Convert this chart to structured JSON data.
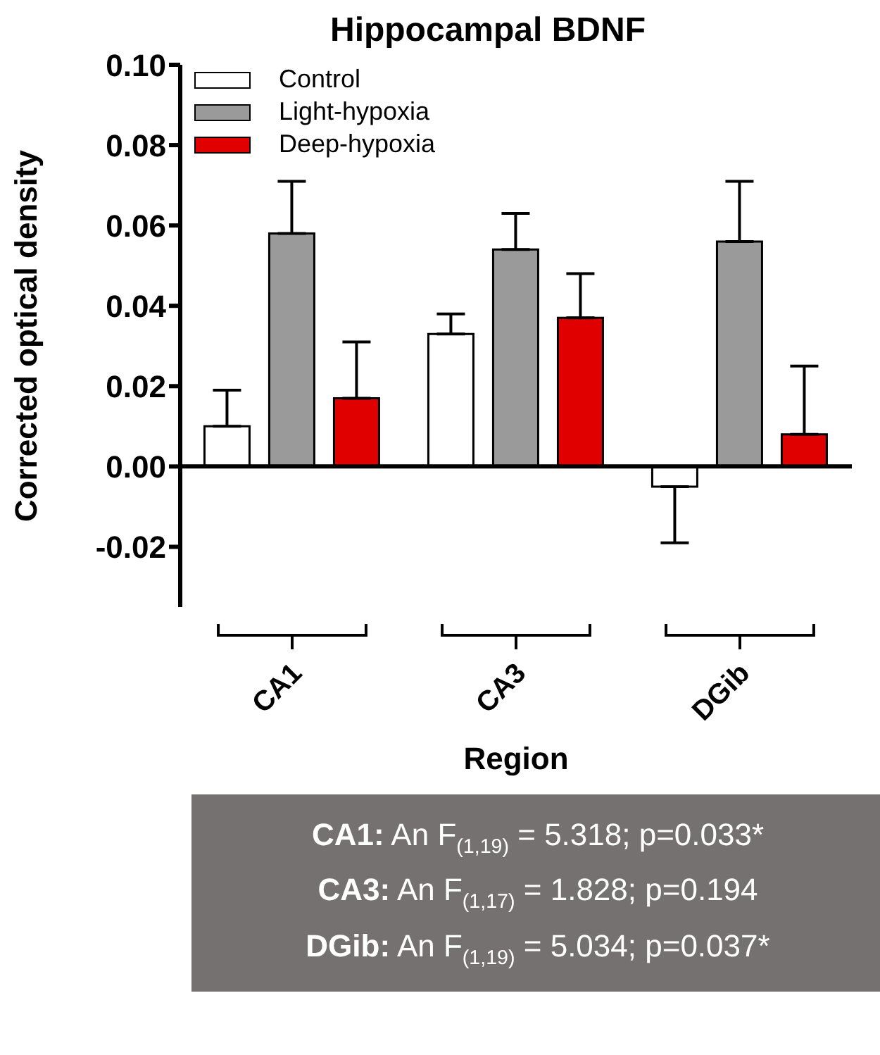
{
  "chart_data": {
    "type": "bar",
    "title": "Hippocampal BDNF",
    "xlabel": "Region",
    "ylabel": "Corrected optical density",
    "categories": [
      "CA1",
      "CA3",
      "DGib"
    ],
    "series": [
      {
        "name": "Control",
        "color": "#ffffff",
        "values": [
          0.01,
          0.033,
          -0.005
        ],
        "errors": [
          [
            0.01,
            0.019
          ],
          [
            0.033,
            0.038
          ],
          [
            -0.019,
            -0.005
          ]
        ]
      },
      {
        "name": "Light-hypoxia",
        "color": "#9a9a9a",
        "values": [
          0.058,
          0.054,
          0.056
        ],
        "errors": [
          [
            0.058,
            0.071
          ],
          [
            0.054,
            0.063
          ],
          [
            0.056,
            0.071
          ]
        ]
      },
      {
        "name": "Deep-hypoxia",
        "color": "#e00000",
        "values": [
          0.017,
          0.037,
          0.008
        ],
        "errors": [
          [
            0.017,
            0.031
          ],
          [
            0.037,
            0.048
          ],
          [
            0.008,
            0.025
          ]
        ]
      }
    ],
    "ylim": [
      -0.035,
      0.1
    ],
    "yticks": [
      -0.02,
      {
        "value": 0,
        "label": "0.00"
      },
      0.02,
      0.04,
      0.06,
      0.08,
      {
        "value": 0.1,
        "label": "0.10"
      }
    ],
    "ref_lines": [
      {
        "axis": "y",
        "value": 0,
        "color": "#000000"
      }
    ],
    "grid": false,
    "legend": "top left",
    "annotations": [
      "CA1: An F$_{(1,19)}$ = 5.318; p=0.033*",
      "CA3: An F$_{(1,17)}$ = 1.828; p=0.194",
      "DGib: An F$_{(1,19)}$ = 5.034; p=0.037*"
    ]
  }
}
